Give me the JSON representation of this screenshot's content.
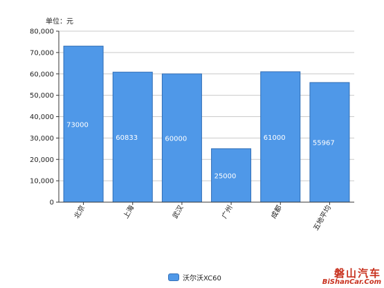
{
  "chart_data": {
    "type": "bar",
    "unit_label": "单位：元",
    "categories": [
      "北京",
      "上海",
      "武汉",
      "广州",
      "成都",
      "五地平均"
    ],
    "series": [
      {
        "name": "沃尔沃XC60",
        "values": [
          73000,
          60833,
          60000,
          25000,
          61000,
          55967
        ],
        "color": "#4f98e8"
      }
    ],
    "ylim": [
      0,
      80000
    ],
    "yticks": [
      "0",
      "10,000",
      "20,000",
      "30,000",
      "40,000",
      "50,000",
      "60,000",
      "70,000",
      "80,000"
    ],
    "grid": true,
    "legend_position": "bottom-center"
  },
  "watermark": {
    "cn": "磐山汽车",
    "en": "BiShanCar.Com"
  }
}
